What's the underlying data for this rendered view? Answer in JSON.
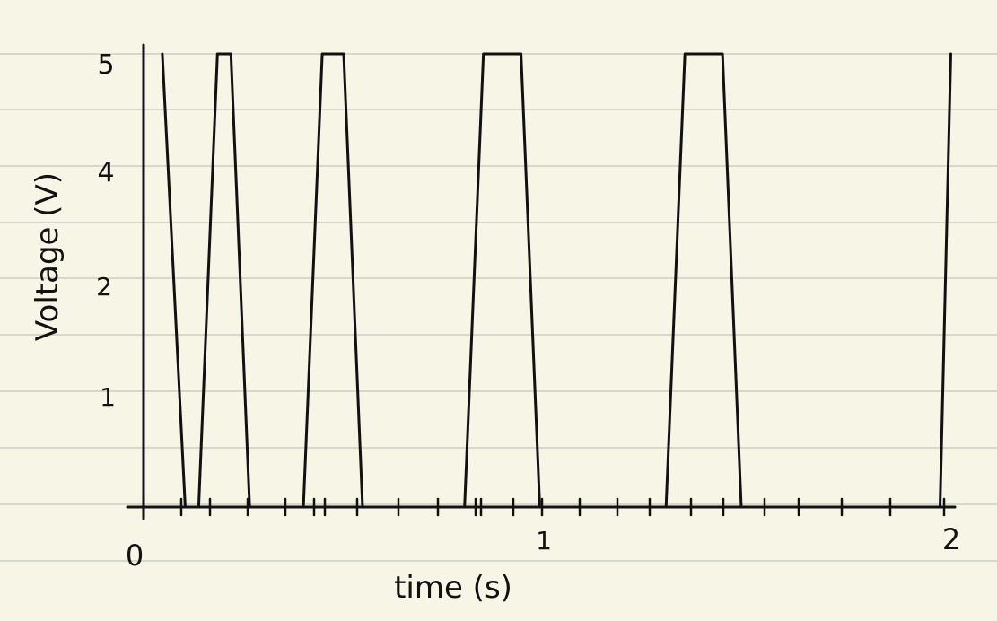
{
  "chart_data": {
    "type": "line",
    "title": "",
    "xlabel": "time (s)",
    "ylabel": "Voltage (V)",
    "xlim": [
      0,
      2
    ],
    "ylim": [
      0,
      5
    ],
    "x_ticks": [
      "0",
      "1",
      "2"
    ],
    "y_ticks": [
      "1",
      "2",
      "4",
      "5"
    ],
    "grid": true,
    "series": [
      {
        "name": "",
        "points": [
          [
            0.05,
            5
          ],
          [
            0.1,
            0
          ],
          [
            0.14,
            0
          ],
          [
            0.18,
            5
          ],
          [
            0.22,
            5
          ],
          [
            0.26,
            0
          ],
          [
            0.4,
            0
          ],
          [
            0.44,
            5
          ],
          [
            0.5,
            5
          ],
          [
            0.54,
            0
          ],
          [
            0.8,
            0
          ],
          [
            0.84,
            5
          ],
          [
            0.94,
            5
          ],
          [
            0.98,
            0
          ],
          [
            1.3,
            0
          ],
          [
            1.34,
            5
          ],
          [
            1.44,
            5
          ],
          [
            1.48,
            0
          ],
          [
            1.98,
            0
          ],
          [
            2.0,
            5
          ]
        ]
      }
    ],
    "colors": {
      "paper": "#f7f5e6",
      "rule": "#d7d8cc",
      "ink": "#111111"
    }
  }
}
